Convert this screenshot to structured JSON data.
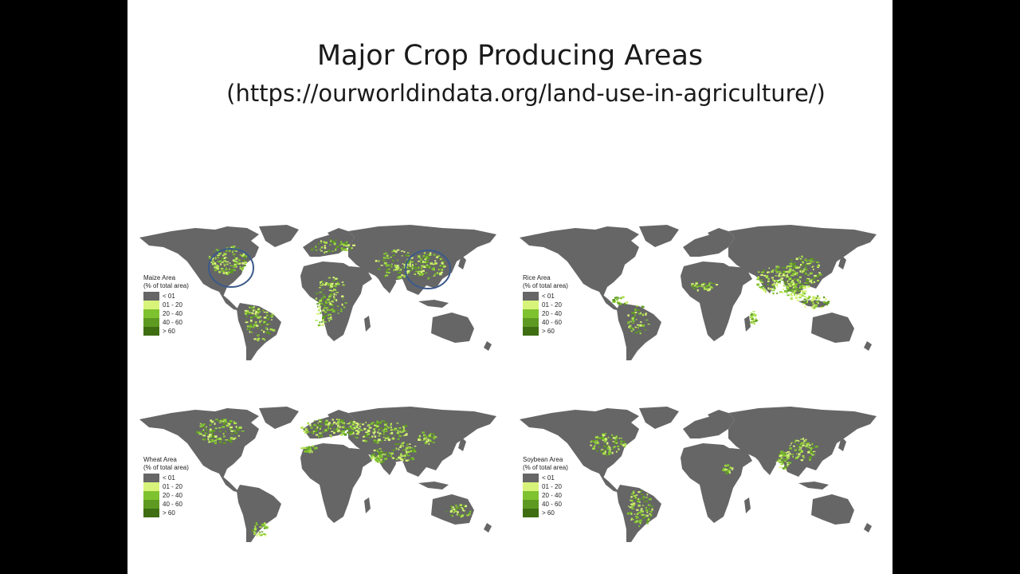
{
  "slide": {
    "title": "Major Crop Producing Areas",
    "subtitle": "(https://ourworldindata.org/land-use-in-agriculture/)"
  },
  "colors": {
    "land": "#666666",
    "crop_light": "#d8f37a",
    "crop_mid": "#a9e04a",
    "crop_dark": "#7fc22f",
    "crop_darker": "#5e9a22",
    "crop_darkest": "#3f6e12",
    "circle": "#3b5a8a"
  },
  "legend_classes": [
    "< 01",
    "01 - 20",
    "20 - 40",
    "40 - 60",
    "> 60"
  ],
  "maps": [
    {
      "id": "maize",
      "legend_title": "Maize Area",
      "legend_subtitle": "(% of total area)"
    },
    {
      "id": "rice",
      "legend_title": "Rice Area",
      "legend_subtitle": "(% of total area)"
    },
    {
      "id": "wheat",
      "legend_title": "Wheat Area",
      "legend_subtitle": "(% of total area)"
    },
    {
      "id": "soybean",
      "legend_title": "Soybean Area",
      "legend_subtitle": "(% of total area)"
    }
  ]
}
